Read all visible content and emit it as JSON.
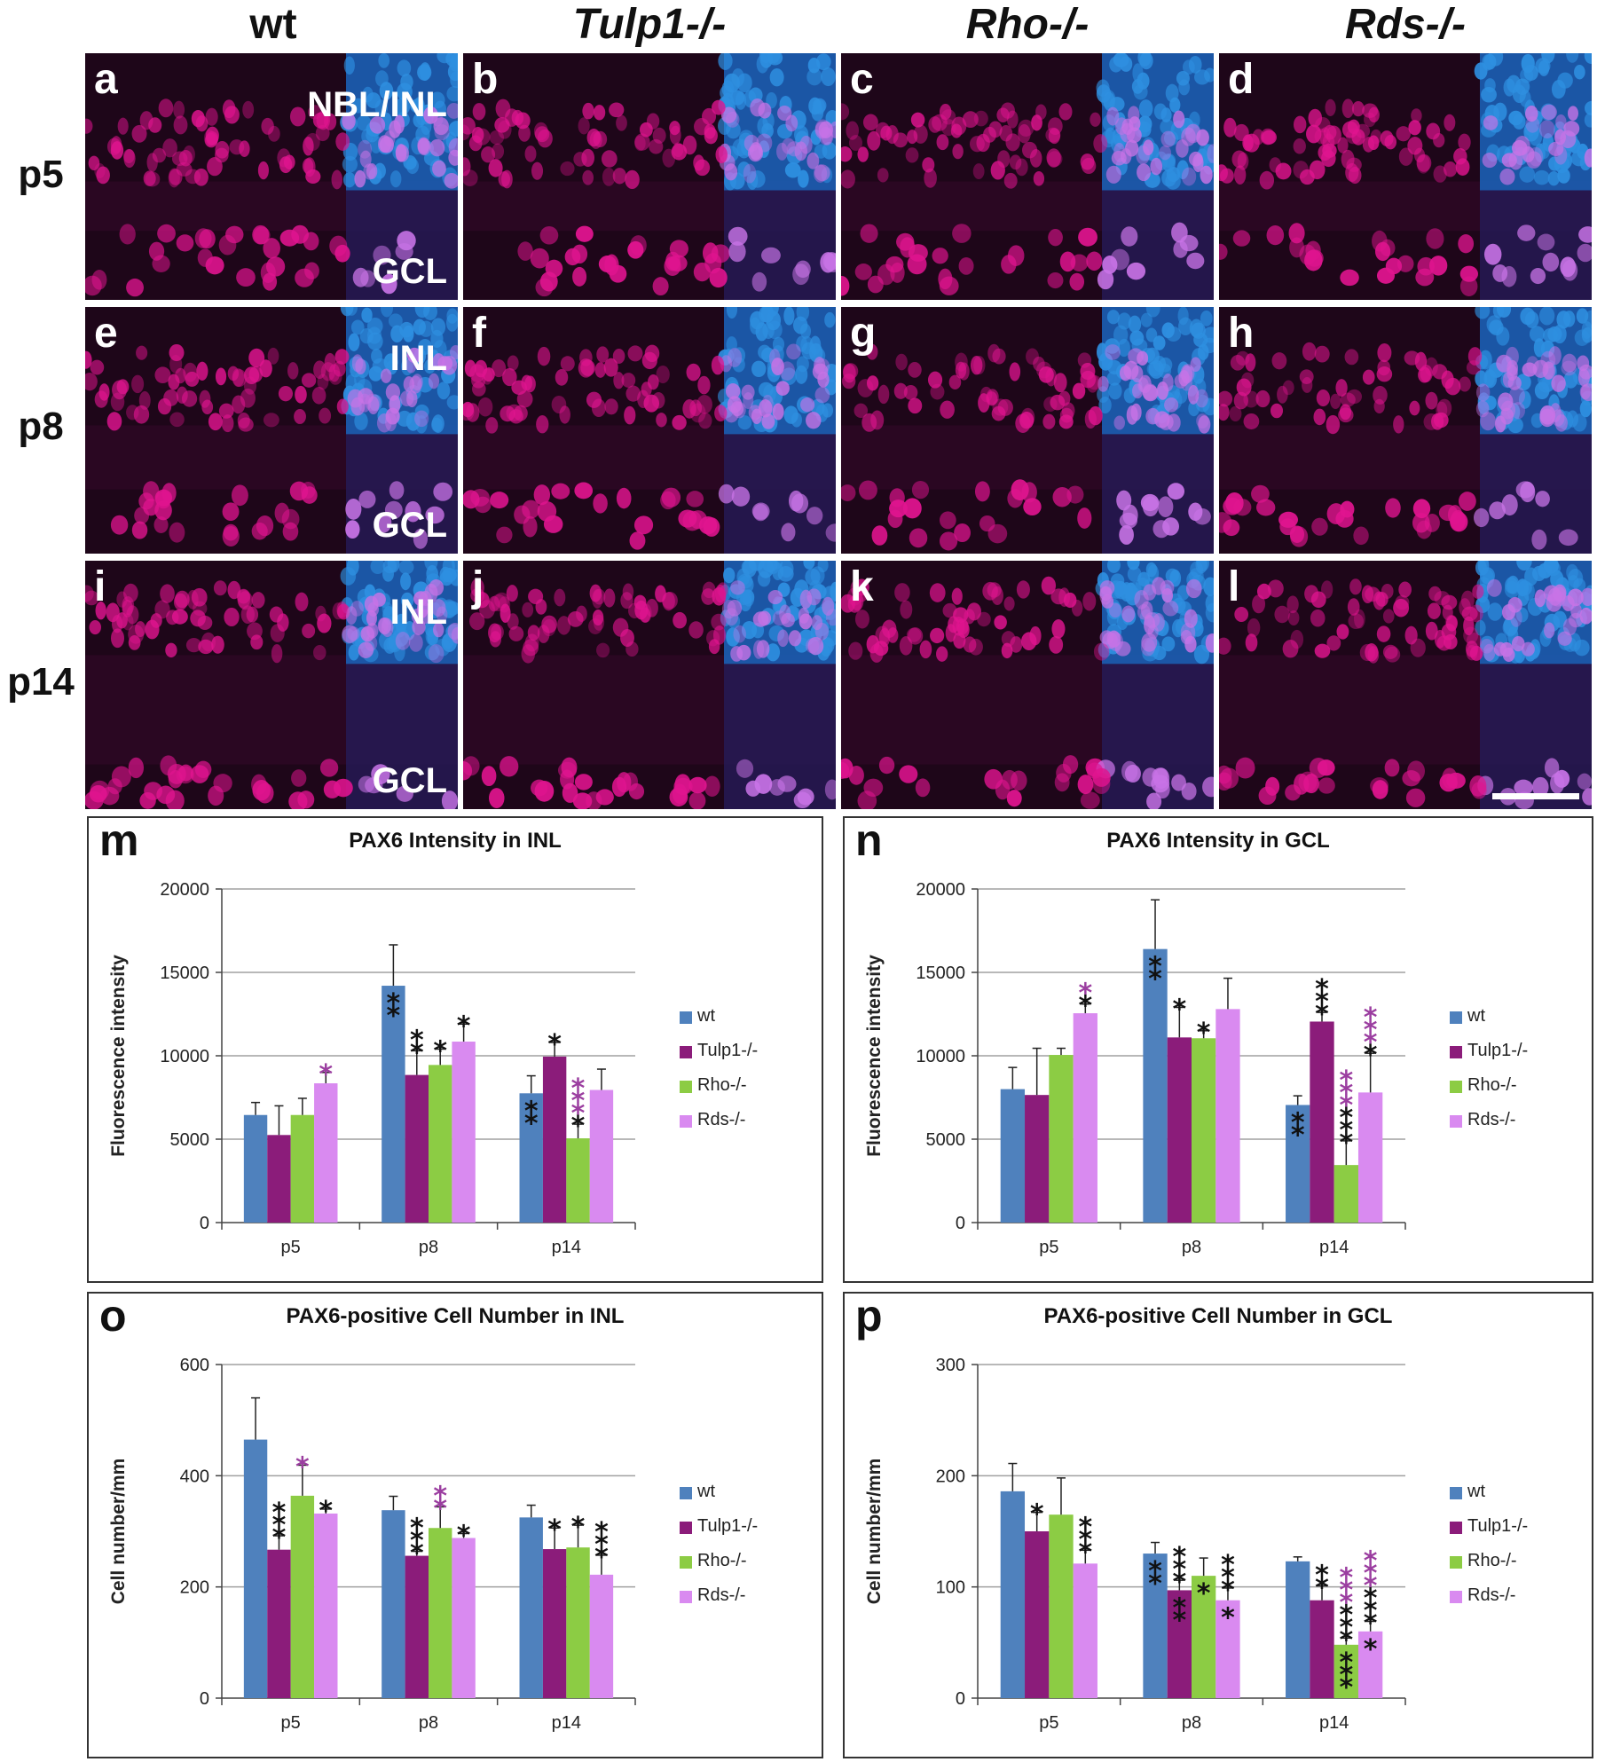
{
  "column_headers": [
    "wt",
    "Tulp1-/-",
    "Rho-/-",
    "Rds-/-"
  ],
  "row_headers": [
    "p5",
    "p8",
    "p14"
  ],
  "panels": [
    {
      "letter": "a",
      "labels": [
        "NBL/INL",
        "GCL"
      ]
    },
    {
      "letter": "b",
      "labels": []
    },
    {
      "letter": "c",
      "labels": []
    },
    {
      "letter": "d",
      "labels": []
    },
    {
      "letter": "e",
      "labels": [
        "INL",
        "GCL"
      ]
    },
    {
      "letter": "f",
      "labels": []
    },
    {
      "letter": "g",
      "labels": []
    },
    {
      "letter": "h",
      "labels": []
    },
    {
      "letter": "i",
      "labels": [
        "INL",
        "GCL"
      ]
    },
    {
      "letter": "j",
      "labels": []
    },
    {
      "letter": "k",
      "labels": []
    },
    {
      "letter": "l",
      "labels": []
    }
  ],
  "colors": {
    "wt": "#4f81bd",
    "Tulp1-/-": "#8b1c7a",
    "Rho-/-": "#8ccc44",
    "Rds-/-": "#d98af0",
    "sig_black": "#111111",
    "sig_purple": "#9b3ea0",
    "nuclei_magenta": "#e0148f",
    "nuclei_blue": "#2e8fe0"
  },
  "chart_data": [
    {
      "letter": "m",
      "type": "bar",
      "title": "PAX6 Intensity in INL",
      "xlabel": "",
      "ylabel": "Fluorescence intensity",
      "ylim": [
        0,
        20000
      ],
      "yticks": [
        0,
        5000,
        10000,
        15000,
        20000
      ],
      "ytick_labels": [
        "0",
        "5000",
        "10000",
        "15000",
        "20000"
      ],
      "grid": true,
      "categories": [
        "p5",
        "p8",
        "p14"
      ],
      "series": [
        {
          "name": "wt",
          "values": [
            6450,
            14200,
            7750
          ],
          "errors": [
            750,
            2450,
            1050
          ]
        },
        {
          "name": "Tulp1-/-",
          "values": [
            5250,
            8850,
            9950
          ],
          "errors": [
            1750,
            1450,
            850
          ]
        },
        {
          "name": "Rho-/-",
          "values": [
            6450,
            9450,
            5050
          ],
          "errors": [
            1000,
            950,
            850
          ]
        },
        {
          "name": "Rds-/-",
          "values": [
            8350,
            10850,
            7950
          ],
          "errors": [
            650,
            1050,
            1250
          ]
        }
      ],
      "significance": [
        {
          "group": 0,
          "series": 1,
          "text": "",
          "purple": ""
        },
        {
          "group": 0,
          "series": 3,
          "text": "",
          "purple": "*"
        },
        {
          "group": 1,
          "series": 0,
          "text": "**",
          "purple": "",
          "inside": true
        },
        {
          "group": 1,
          "series": 1,
          "text": "**",
          "purple": ""
        },
        {
          "group": 1,
          "series": 2,
          "text": "*",
          "purple": ""
        },
        {
          "group": 1,
          "series": 3,
          "text": "*",
          "purple": ""
        },
        {
          "group": 2,
          "series": 0,
          "text": "**",
          "purple": "",
          "inside": true
        },
        {
          "group": 2,
          "series": 1,
          "text": "*",
          "purple": ""
        },
        {
          "group": 2,
          "series": 2,
          "text": "*",
          "purple": "***"
        }
      ],
      "legend": "right"
    },
    {
      "letter": "n",
      "type": "bar",
      "title": "PAX6 Intensity in GCL",
      "xlabel": "",
      "ylabel": "Fluorescence intensity",
      "ylim": [
        0,
        20000
      ],
      "yticks": [
        0,
        5000,
        10000,
        15000,
        20000
      ],
      "ytick_labels": [
        "0",
        "5000",
        "10000",
        "15000",
        "20000"
      ],
      "grid": true,
      "categories": [
        "p5",
        "p8",
        "p14"
      ],
      "series": [
        {
          "name": "wt",
          "values": [
            8000,
            16400,
            7050
          ],
          "errors": [
            1300,
            2950,
            550
          ]
        },
        {
          "name": "Tulp1-/-",
          "values": [
            7650,
            11100,
            12050
          ],
          "errors": [
            2800,
            1800,
            550
          ]
        },
        {
          "name": "Rho-/-",
          "values": [
            10050,
            11050,
            3450
          ],
          "errors": [
            400,
            450,
            1450
          ]
        },
        {
          "name": "Rds-/-",
          "values": [
            12550,
            12800,
            7800
          ],
          "errors": [
            550,
            1850,
            2350
          ]
        }
      ],
      "significance": [
        {
          "group": 0,
          "series": 3,
          "text": "*",
          "purple": "*"
        },
        {
          "group": 1,
          "series": 0,
          "text": "**",
          "purple": "",
          "inside": true
        },
        {
          "group": 1,
          "series": 1,
          "text": "*",
          "purple": ""
        },
        {
          "group": 1,
          "series": 2,
          "text": "*",
          "purple": ""
        },
        {
          "group": 2,
          "series": 0,
          "text": "**",
          "purple": "",
          "inside": true
        },
        {
          "group": 2,
          "series": 1,
          "text": "***",
          "purple": ""
        },
        {
          "group": 2,
          "series": 2,
          "text": "***",
          "purple": "***"
        },
        {
          "group": 2,
          "series": 3,
          "text": "*",
          "purple": "***"
        }
      ],
      "legend": "right"
    },
    {
      "letter": "o",
      "type": "bar",
      "title": "PAX6-positive Cell Number in INL",
      "xlabel": "",
      "ylabel": "Cell number/mm",
      "ylim": [
        0,
        600
      ],
      "yticks": [
        0,
        200,
        400,
        600
      ],
      "ytick_labels": [
        "0",
        "200",
        "400",
        "600"
      ],
      "grid": true,
      "categories": [
        "p5",
        "p8",
        "p14"
      ],
      "series": [
        {
          "name": "wt",
          "values": [
            465,
            338,
            325
          ],
          "errors": [
            75,
            25,
            22
          ]
        },
        {
          "name": "Tulp1-/-",
          "values": [
            267,
            256,
            268
          ],
          "errors": [
            25,
            8,
            38
          ]
        },
        {
          "name": "Rho-/-",
          "values": [
            364,
            306,
            271
          ],
          "errors": [
            55,
            38,
            40
          ]
        },
        {
          "name": "Rds-/-",
          "values": [
            332,
            288,
            222
          ],
          "errors": [
            8,
            8,
            35
          ]
        }
      ],
      "significance": [
        {
          "group": 0,
          "series": 1,
          "text": "***",
          "purple": ""
        },
        {
          "group": 0,
          "series": 2,
          "text": "",
          "purple": "*"
        },
        {
          "group": 0,
          "series": 3,
          "text": "*",
          "purple": ""
        },
        {
          "group": 1,
          "series": 1,
          "text": "***",
          "purple": ""
        },
        {
          "group": 1,
          "series": 2,
          "text": "",
          "purple": "**"
        },
        {
          "group": 1,
          "series": 3,
          "text": "*",
          "purple": ""
        },
        {
          "group": 2,
          "series": 1,
          "text": "*",
          "purple": ""
        },
        {
          "group": 2,
          "series": 2,
          "text": "*",
          "purple": ""
        },
        {
          "group": 2,
          "series": 3,
          "text": "***",
          "purple": ""
        }
      ],
      "legend": "right"
    },
    {
      "letter": "p",
      "type": "bar",
      "title": "PAX6-positive Cell Number in GCL",
      "xlabel": "",
      "ylabel": "Cell number/mm",
      "ylim": [
        0,
        300
      ],
      "yticks": [
        0,
        100,
        200,
        300
      ],
      "ytick_labels": [
        "0",
        "100",
        "200",
        "300"
      ],
      "grid": true,
      "categories": [
        "p5",
        "p8",
        "p14"
      ],
      "series": [
        {
          "name": "wt",
          "values": [
            186,
            130,
            123
          ],
          "errors": [
            25,
            10,
            4
          ]
        },
        {
          "name": "Tulp1-/-",
          "values": [
            150,
            97,
            88
          ],
          "errors": [
            17,
            9,
            13
          ]
        },
        {
          "name": "Rho-/-",
          "values": [
            165,
            110,
            48
          ],
          "errors": [
            33,
            16,
            6
          ]
        },
        {
          "name": "Rds-/-",
          "values": [
            121,
            88,
            60
          ],
          "errors": [
            12,
            11,
            9
          ]
        }
      ],
      "significance": [
        {
          "group": 0,
          "series": 1,
          "text": "*",
          "purple": ""
        },
        {
          "group": 0,
          "series": 3,
          "text": "***",
          "purple": ""
        },
        {
          "group": 1,
          "series": 0,
          "text": "**",
          "purple": "",
          "inside": true
        },
        {
          "group": 1,
          "series": 1,
          "text": "***",
          "purple": "",
          "inside_text": "**"
        },
        {
          "group": 1,
          "series": 2,
          "text": "",
          "purple": "",
          "inside_text": "*"
        },
        {
          "group": 1,
          "series": 3,
          "text": "***",
          "purple": "",
          "inside_text": "*"
        },
        {
          "group": 2,
          "series": 1,
          "text": "**",
          "purple": ""
        },
        {
          "group": 2,
          "series": 2,
          "text": "***",
          "purple": "***",
          "inside_text": "***"
        },
        {
          "group": 2,
          "series": 3,
          "text": "***",
          "purple": "***",
          "inside_text": "*"
        }
      ],
      "legend": "right"
    }
  ]
}
